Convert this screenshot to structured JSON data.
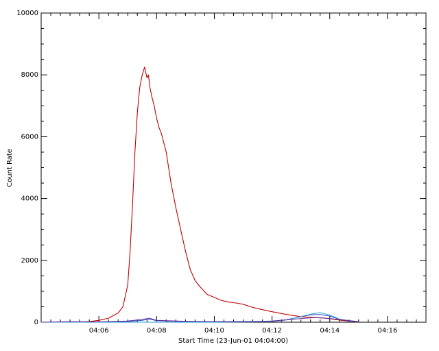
{
  "chart_data": {
    "type": "line",
    "xlabel": "Start Time (23-Jun-01 04:04:00)",
    "ylabel": "Count Rate",
    "x_unit": "time (HH:MM, 23-Jun-01)",
    "xlim": [
      "04:04:00",
      "04:17:20"
    ],
    "ylim": [
      0,
      10000
    ],
    "x_tick_labels": [
      "04:06",
      "04:08",
      "04:10",
      "04:12",
      "04:14",
      "04:16"
    ],
    "y_tick_labels": [
      "0",
      "2000",
      "4000",
      "6000",
      "8000",
      "10000"
    ],
    "grid": false,
    "series": [
      {
        "color": "#c00000",
        "x": [
          "04:05:10",
          "04:05:40",
          "04:06:00",
          "04:06:20",
          "04:06:40",
          "04:06:50",
          "04:07:00",
          "04:07:05",
          "04:07:10",
          "04:07:15",
          "04:07:20",
          "04:07:25",
          "04:07:30",
          "04:07:35",
          "04:07:40",
          "04:07:43",
          "04:07:46",
          "04:07:50",
          "04:07:55",
          "04:08:00",
          "04:08:05",
          "04:08:10",
          "04:08:15",
          "04:08:20",
          "04:08:30",
          "04:08:40",
          "04:08:50",
          "04:09:00",
          "04:09:10",
          "04:09:20",
          "04:09:30",
          "04:09:45",
          "04:10:00",
          "04:10:15",
          "04:10:30",
          "04:10:45",
          "04:11:00",
          "04:11:15",
          "04:11:30",
          "04:12:00",
          "04:12:30",
          "04:13:00",
          "04:13:30",
          "04:13:45",
          "04:14:00",
          "04:14:15",
          "04:14:30",
          "04:14:50",
          "04:15:00"
        ],
        "y": [
          0,
          20,
          60,
          130,
          300,
          500,
          1200,
          2300,
          3800,
          5500,
          6800,
          7600,
          8000,
          8250,
          7900,
          8000,
          7600,
          7300,
          7000,
          6600,
          6300,
          6100,
          5800,
          5500,
          4500,
          3700,
          3000,
          2300,
          1700,
          1350,
          1150,
          900,
          800,
          700,
          650,
          620,
          580,
          500,
          440,
          340,
          250,
          180,
          150,
          140,
          110,
          80,
          50,
          20,
          10
        ]
      },
      {
        "color": "#1f4fbf",
        "x": [
          "04:04:00",
          "04:06:00",
          "04:07:00",
          "04:07:30",
          "04:07:45",
          "04:08:00",
          "04:08:30",
          "04:09:00",
          "04:10:00",
          "04:11:00",
          "04:12:00",
          "04:12:30",
          "04:13:00",
          "04:13:20",
          "04:13:40",
          "04:14:00",
          "04:14:20",
          "04:14:40",
          "04:15:00"
        ],
        "y": [
          0,
          0,
          20,
          60,
          100,
          50,
          30,
          20,
          20,
          15,
          40,
          80,
          180,
          240,
          250,
          200,
          90,
          40,
          10
        ]
      },
      {
        "color": "#2a9ad6",
        "x": [
          "04:04:00",
          "04:10:00",
          "04:11:30",
          "04:12:00",
          "04:12:30",
          "04:13:00",
          "04:13:20",
          "04:13:40",
          "04:13:50",
          "04:14:00",
          "04:14:20",
          "04:14:40",
          "04:15:00"
        ],
        "y": [
          0,
          0,
          10,
          20,
          70,
          180,
          260,
          310,
          270,
          230,
          100,
          50,
          20
        ]
      },
      {
        "color": "#6a2a9a",
        "x": [
          "04:04:00",
          "04:05:00",
          "04:06:00",
          "04:07:00",
          "04:07:30",
          "04:07:45",
          "04:08:00",
          "04:09:00",
          "04:10:00",
          "04:12:00",
          "04:13:00",
          "04:13:30",
          "04:14:00",
          "04:15:00"
        ],
        "y": [
          0,
          20,
          10,
          40,
          90,
          130,
          60,
          30,
          20,
          30,
          120,
          150,
          120,
          20
        ]
      }
    ]
  }
}
